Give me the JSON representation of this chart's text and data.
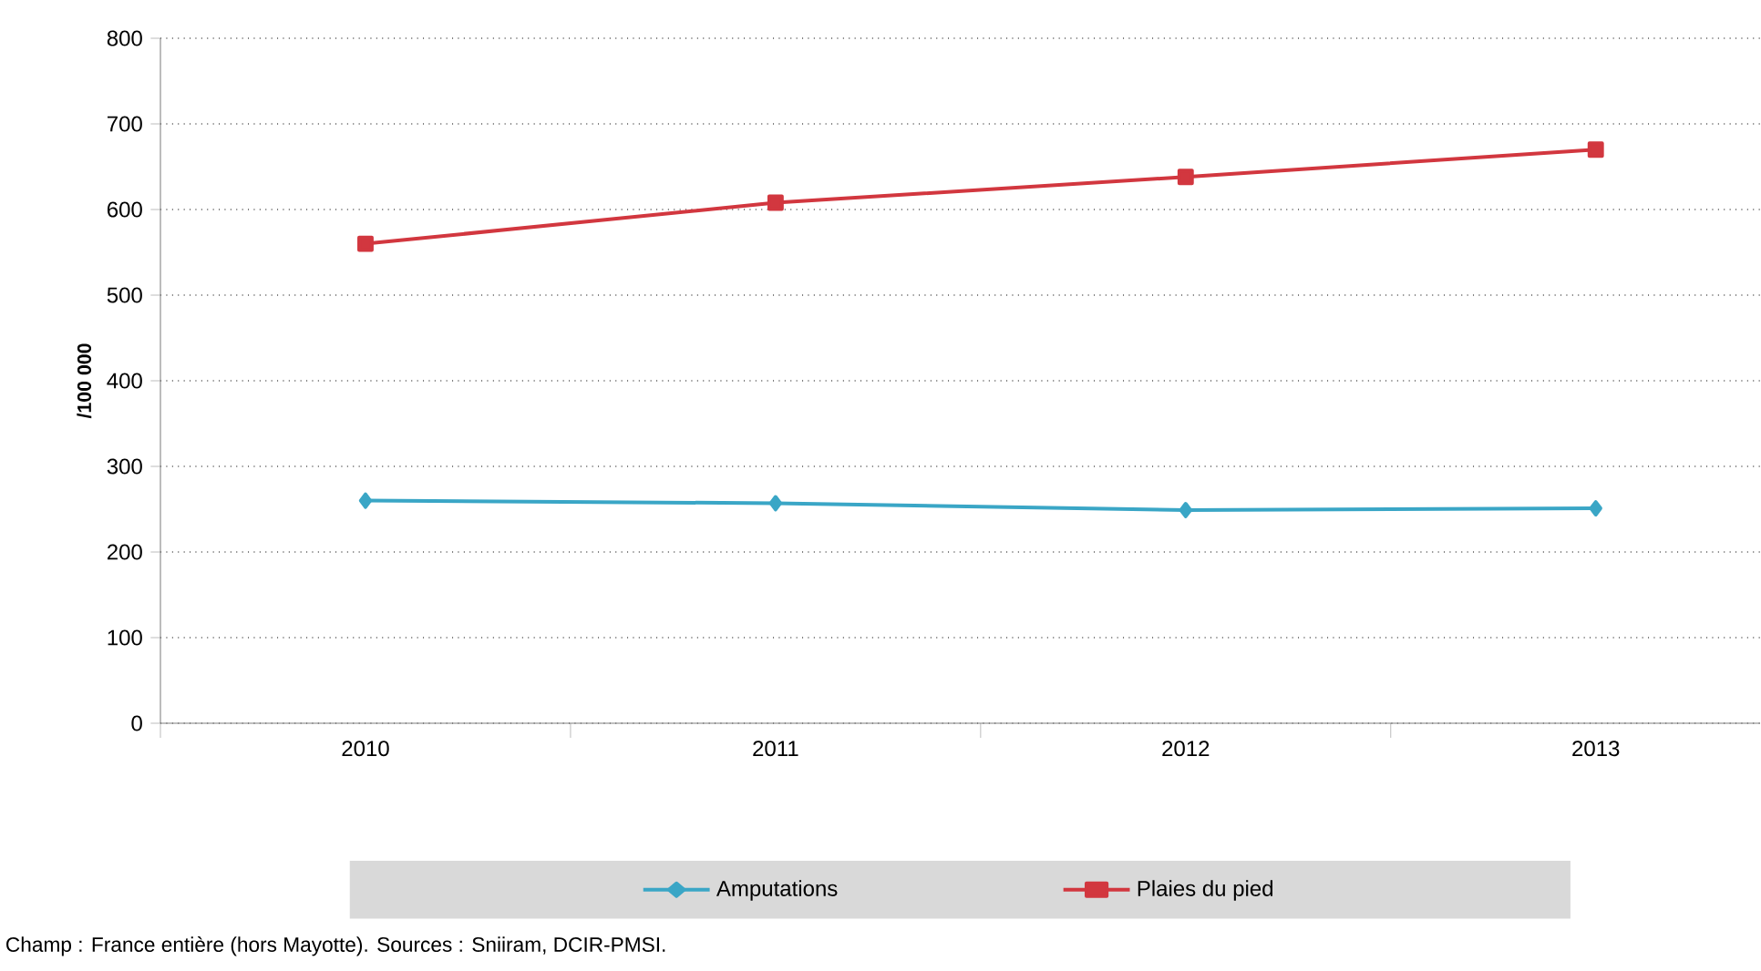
{
  "chart_data": {
    "type": "line",
    "ylabel": "/100 000",
    "categories": [
      "2010",
      "2011",
      "2012",
      "2013"
    ],
    "series": [
      {
        "name": "Amputations",
        "color": "#3aa6c6",
        "marker": "diamond",
        "values": [
          260,
          257,
          249,
          251
        ]
      },
      {
        "name": "Plaies du pied",
        "color": "#d2373f",
        "marker": "square",
        "values": [
          560,
          608,
          638,
          670
        ]
      }
    ],
    "ylim": [
      0,
      800
    ],
    "yticks": [
      0,
      100,
      200,
      300,
      400,
      500,
      600,
      700,
      800
    ],
    "grid": "y",
    "legend": "bottom",
    "line_style": "solid",
    "annotations": [
      "Champ : France entière (hors Mayotte). Sources : Sniiram, DCIR-PMSI."
    ]
  }
}
